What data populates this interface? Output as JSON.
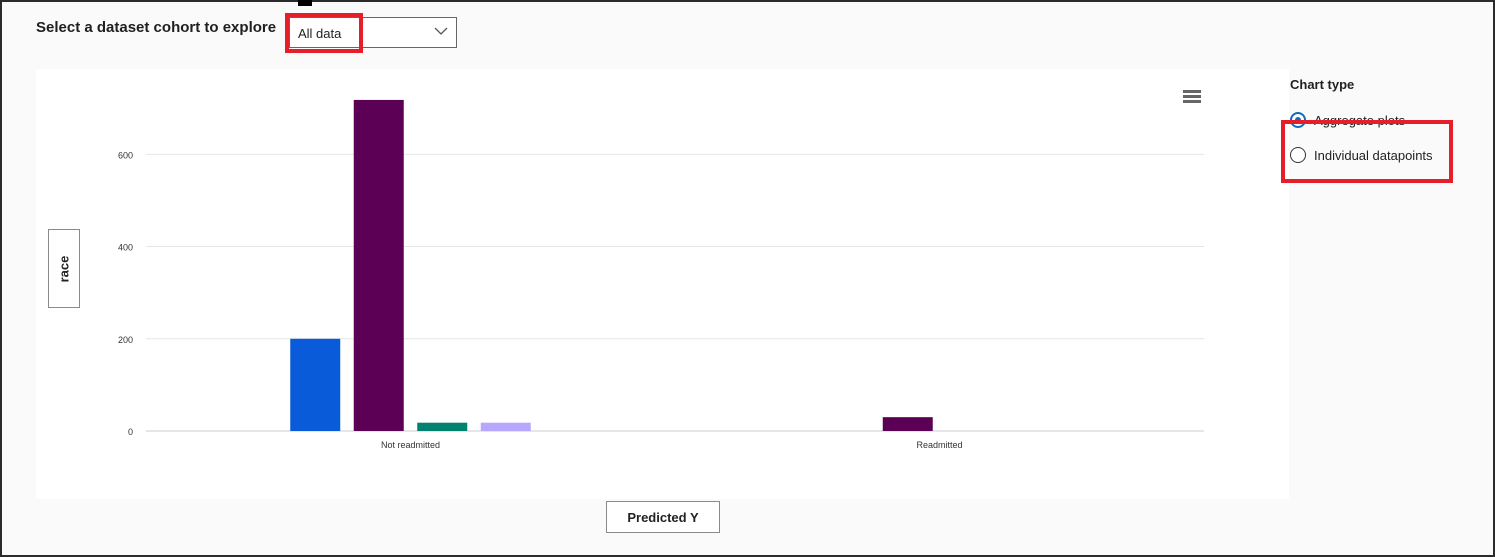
{
  "cohort": {
    "label": "Select a dataset cohort to explore",
    "selected": "All data",
    "dropdown_icon": "chevron-down-icon"
  },
  "chart_data": {
    "type": "bar",
    "categories": [
      "Not readmitted",
      "Readmitted"
    ],
    "series": [
      {
        "color": "#0a5bd9",
        "values": [
          200,
          0
        ]
      },
      {
        "color": "#5c0055",
        "values": [
          718,
          30
        ]
      },
      {
        "color": "#00826f",
        "values": [
          18,
          0
        ]
      },
      {
        "color": "#b8a7ff",
        "values": [
          18,
          0
        ]
      }
    ],
    "ylim": [
      0,
      720
    ],
    "yticks": [
      0,
      200,
      400,
      600
    ],
    "grid": true,
    "xaxis_button": "Predicted Y",
    "yaxis_button": "race",
    "menu_icon": "hamburger-menu-icon"
  },
  "chart_type": {
    "title": "Chart type",
    "options": [
      {
        "label": "Aggregate plots",
        "selected": true
      },
      {
        "label": "Individual datapoints",
        "selected": false
      }
    ]
  },
  "annotation_color": "#e51e2a"
}
